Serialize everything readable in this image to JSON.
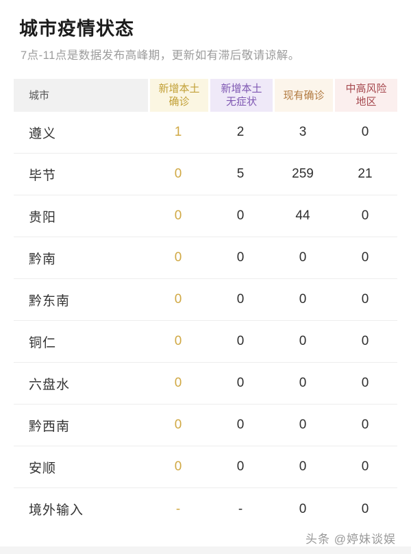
{
  "page": {
    "title": "城市疫情状态",
    "subtitle": "7点-11点是数据发布高峰期，更新如有滞后敬请谅解。",
    "watermark": "头条 @婷妹谈娱"
  },
  "table": {
    "columns": [
      {
        "key": "city",
        "label": "城市",
        "text_color": "#565656",
        "bg_color": "#f1f1f1",
        "value_color": "#333333"
      },
      {
        "key": "new-local-confirmed",
        "label": "新增本土\n确诊",
        "text_color": "#c2a037",
        "bg_color": "#fbf6e2",
        "value_color": "#d0a843"
      },
      {
        "key": "new-local-asymptomatic",
        "label": "新增本土\n无症状",
        "text_color": "#7e57b2",
        "bg_color": "#efe9f8",
        "value_color": "#2e2e2e"
      },
      {
        "key": "existing-confirmed",
        "label": "现有确诊",
        "text_color": "#b1793f",
        "bg_color": "#fcf5eb",
        "value_color": "#2e2e2e"
      },
      {
        "key": "med-high-risk-areas",
        "label": "中高风险\n地区",
        "text_color": "#a6494f",
        "bg_color": "#fbefee",
        "value_color": "#2e2e2e"
      }
    ],
    "rows": [
      {
        "city": "遵义",
        "values": [
          "1",
          "2",
          "3",
          "0"
        ]
      },
      {
        "city": "毕节",
        "values": [
          "0",
          "5",
          "259",
          "21"
        ]
      },
      {
        "city": "贵阳",
        "values": [
          "0",
          "0",
          "44",
          "0"
        ]
      },
      {
        "city": "黔南",
        "values": [
          "0",
          "0",
          "0",
          "0"
        ]
      },
      {
        "city": "黔东南",
        "values": [
          "0",
          "0",
          "0",
          "0"
        ]
      },
      {
        "city": "铜仁",
        "values": [
          "0",
          "0",
          "0",
          "0"
        ]
      },
      {
        "city": "六盘水",
        "values": [
          "0",
          "0",
          "0",
          "0"
        ]
      },
      {
        "city": "黔西南",
        "values": [
          "0",
          "0",
          "0",
          "0"
        ]
      },
      {
        "city": "安顺",
        "values": [
          "0",
          "0",
          "0",
          "0"
        ]
      },
      {
        "city": "境外输入",
        "values": [
          "-",
          "-",
          "0",
          "0"
        ]
      }
    ]
  }
}
